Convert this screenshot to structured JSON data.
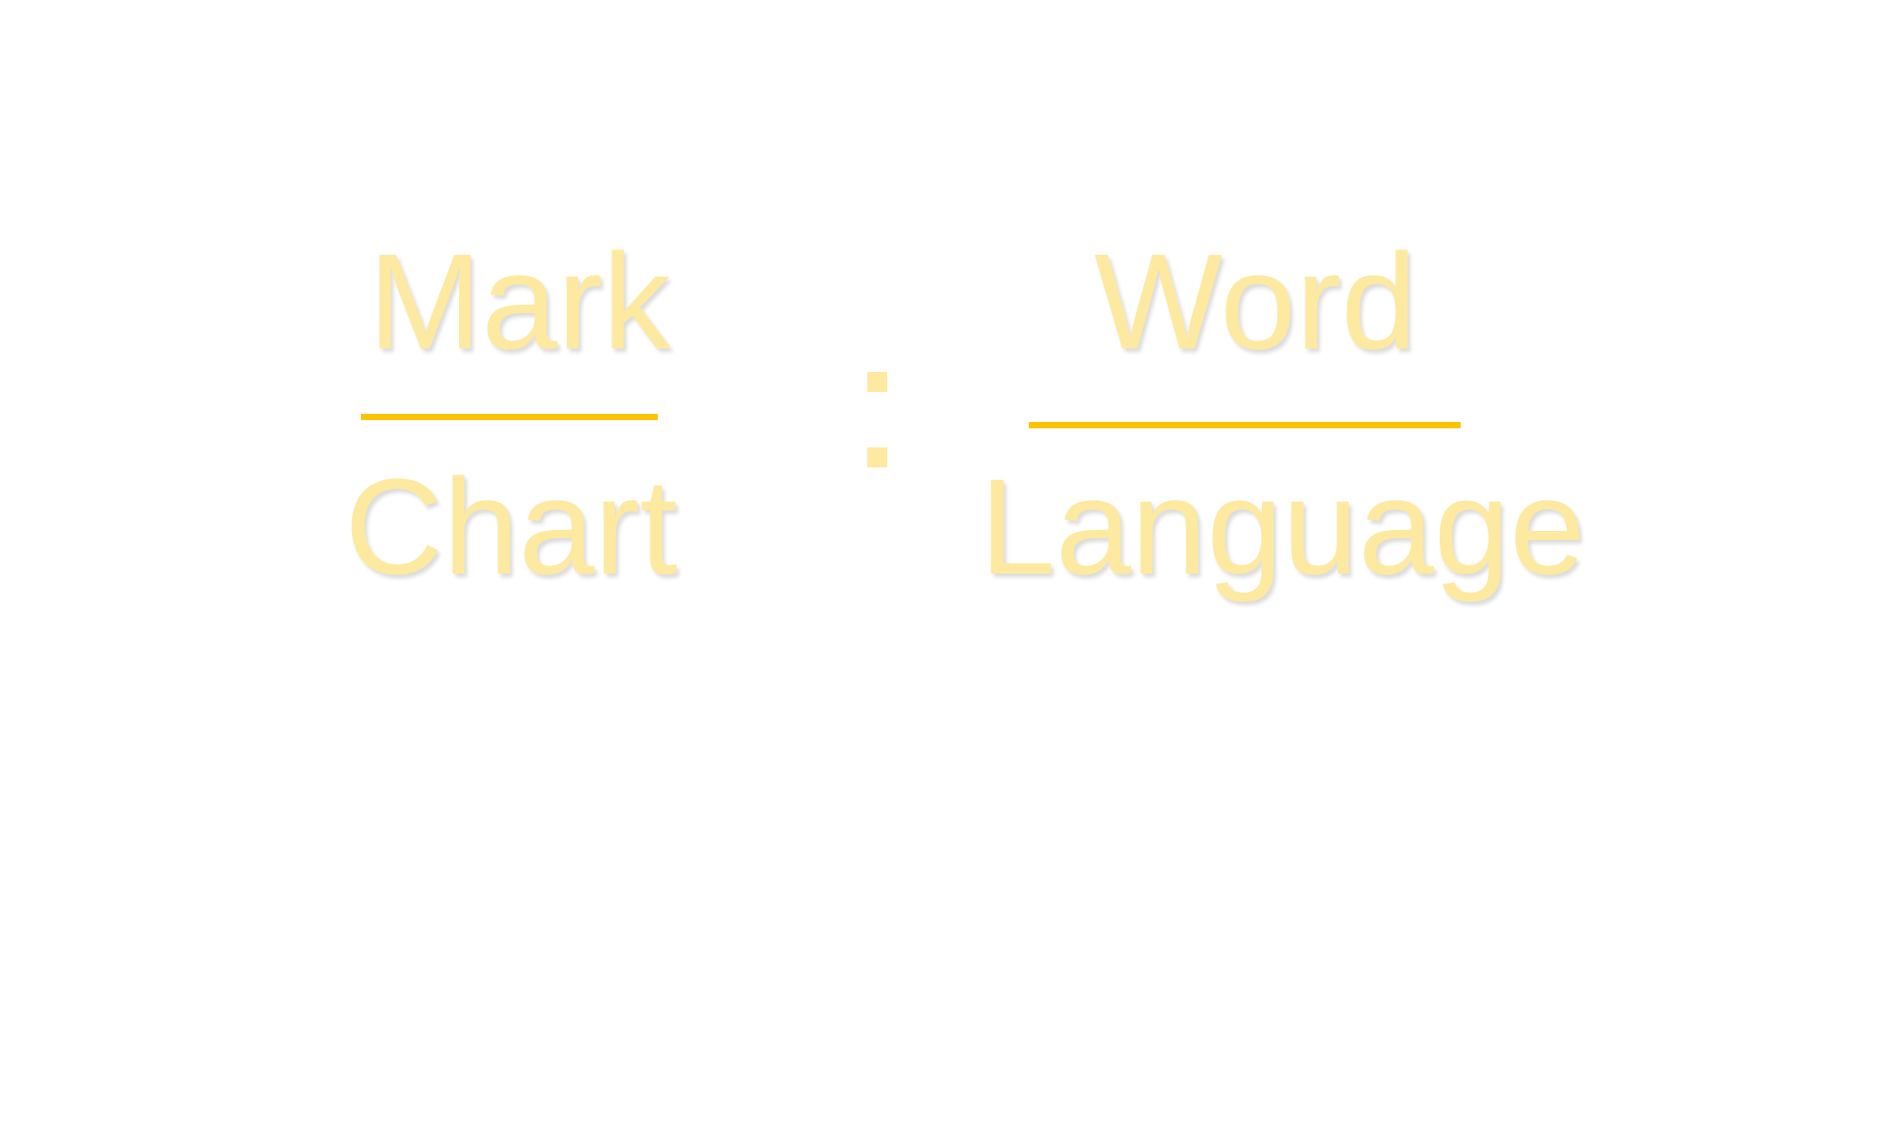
{
  "analogy": {
    "left": {
      "numerator": "Mark",
      "denominator": "Chart"
    },
    "right": {
      "numerator": "Word",
      "denominator": "Language"
    }
  },
  "colors": {
    "text": "#fde9a0",
    "rule": "#fcc400",
    "colon": "#fde9a0",
    "background": "#ffffff"
  }
}
